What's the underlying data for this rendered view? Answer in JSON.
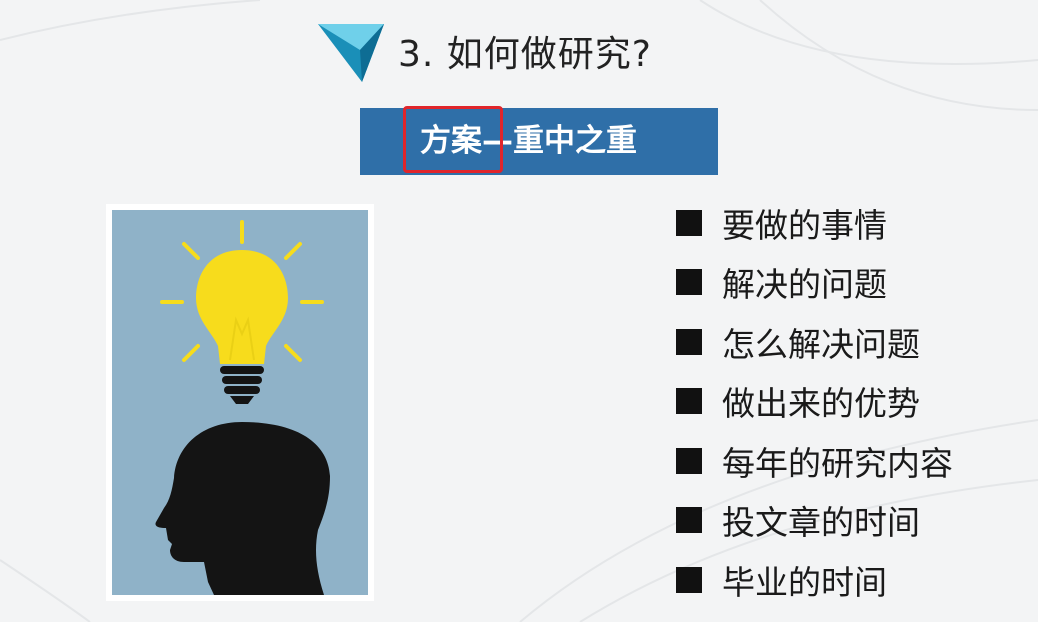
{
  "title": {
    "text": "3. 如何做研究?",
    "icon": "blue-triangle-icon"
  },
  "banner": {
    "text": "方案—重中之重",
    "background_color": "#2f6fa8",
    "highlight_color": "#e0252b"
  },
  "illustration": {
    "name": "lightbulb-head-illustration",
    "background_color": "#8fb2c8",
    "bulb_color": "#f7dc1c"
  },
  "list": {
    "items": [
      {
        "label": "要做的事情"
      },
      {
        "label": "解决的问题"
      },
      {
        "label": "怎么解决问题"
      },
      {
        "label": "做出来的优势"
      },
      {
        "label": "每年的研究内容"
      },
      {
        "label": "投文章的时间"
      },
      {
        "label": "毕业的时间"
      }
    ]
  }
}
